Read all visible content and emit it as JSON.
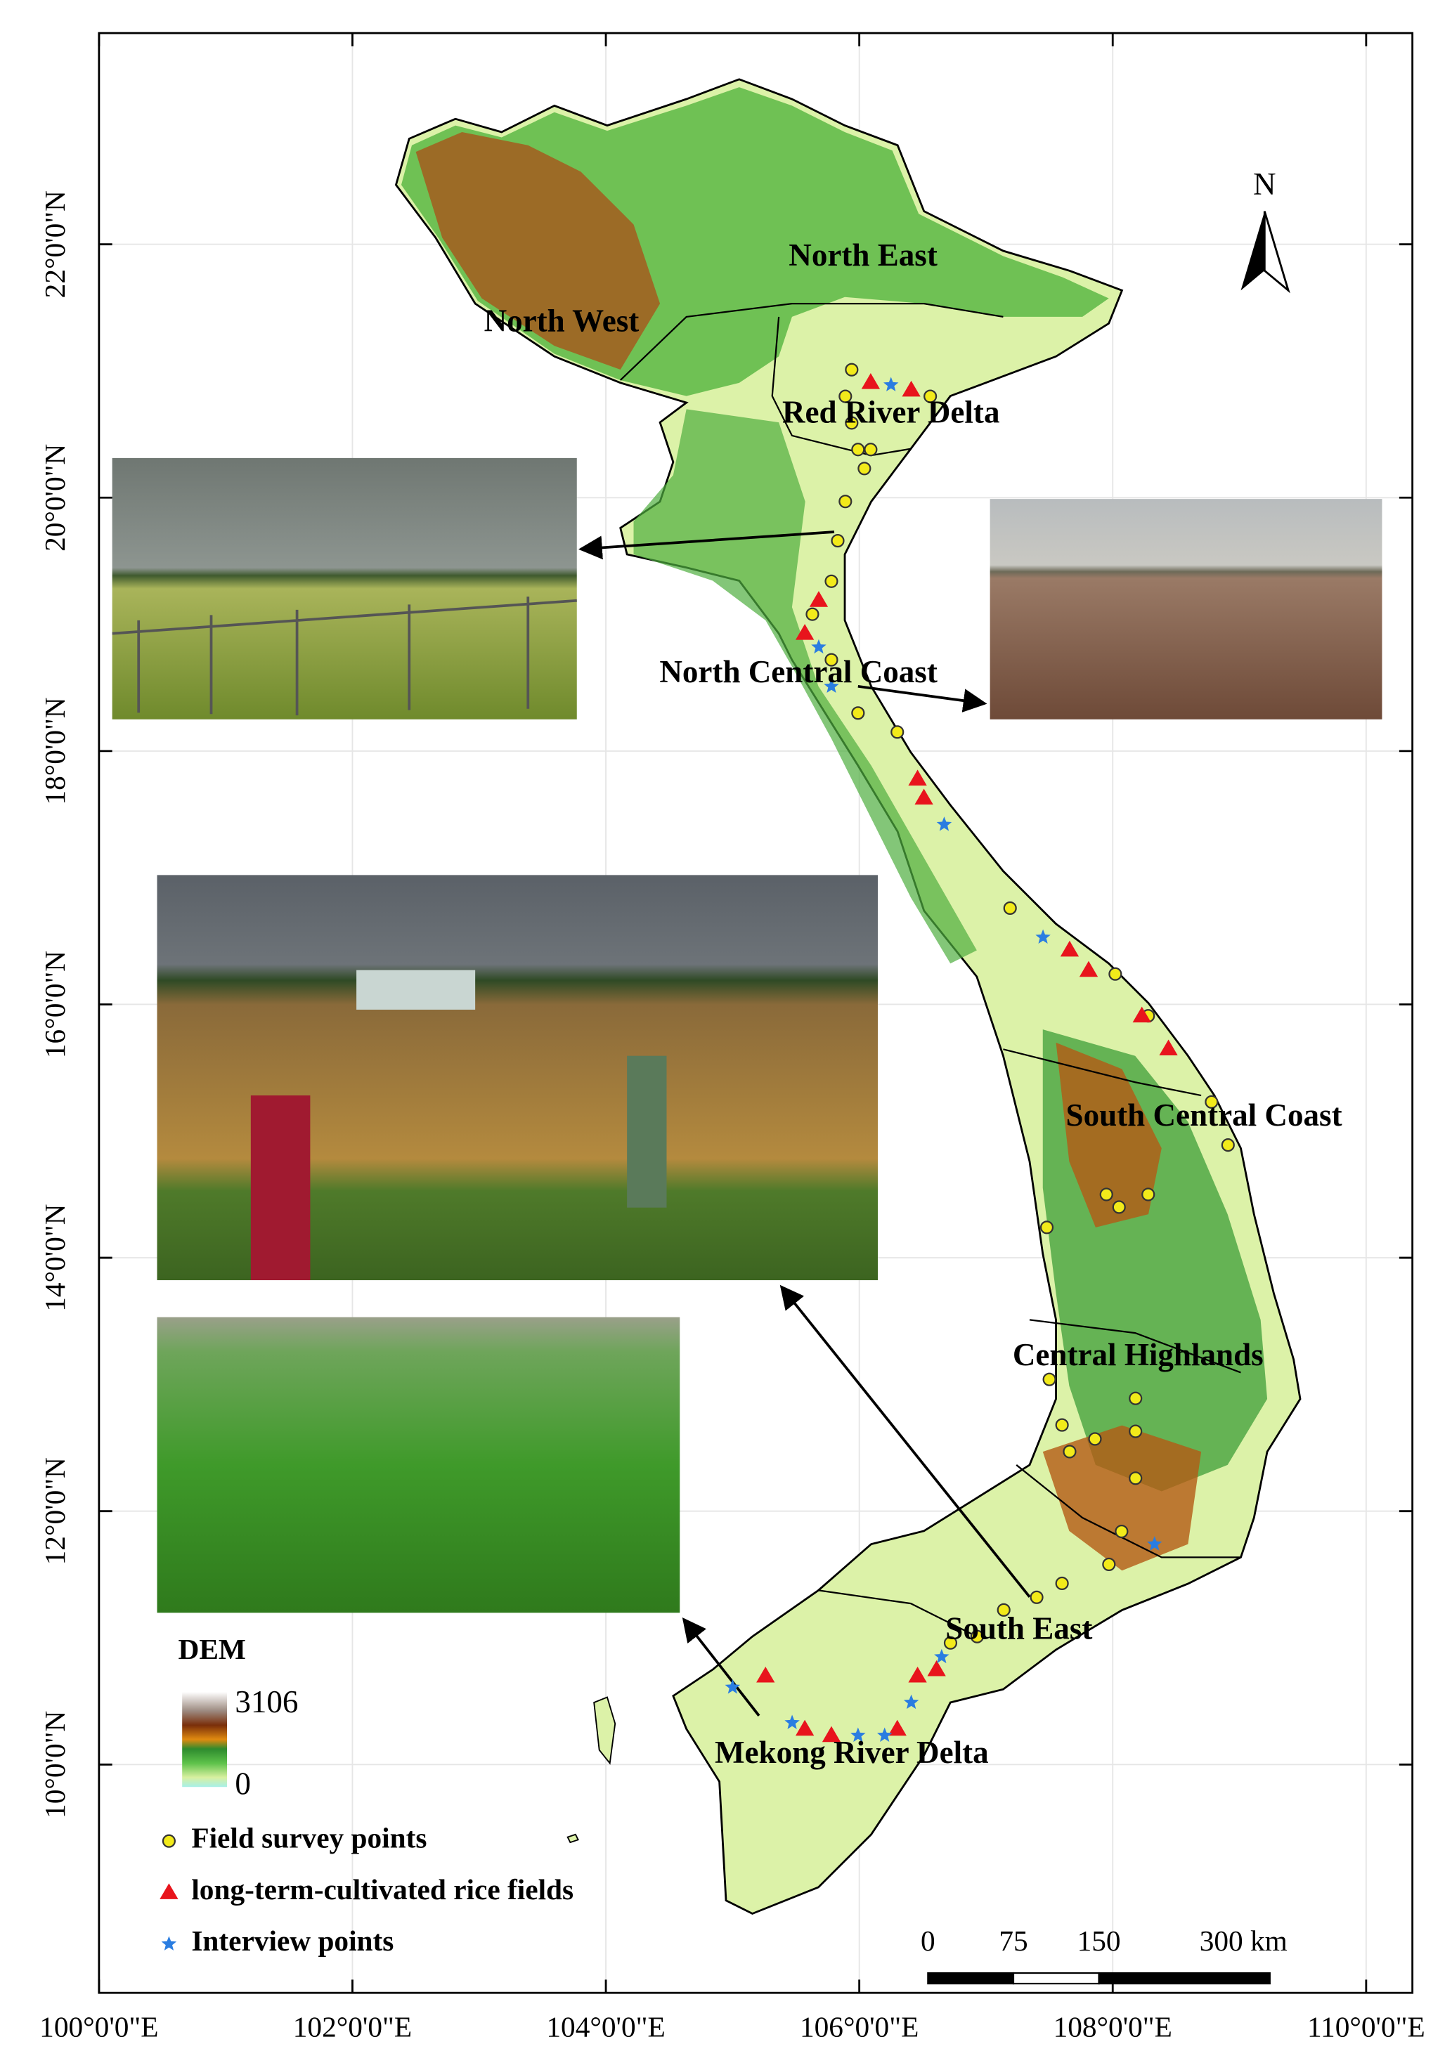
{
  "map": {
    "lon_range": [
      100,
      110.365
    ],
    "lat_range": [
      8.198,
      23.667
    ],
    "lon_ticks": [
      {
        "value": 100,
        "label": "100°0'0\"E"
      },
      {
        "value": 102,
        "label": "102°0'0\"E"
      },
      {
        "value": 104,
        "label": "104°0'0\"E"
      },
      {
        "value": 106,
        "label": "106°0'0\"E"
      },
      {
        "value": 108,
        "label": "108°0'0\"E"
      },
      {
        "value": 110,
        "label": "110°0'0\"E"
      }
    ],
    "lat_ticks": [
      {
        "value": 22,
        "label": "22°0'0\"N"
      },
      {
        "value": 20,
        "label": "20°0'0\"N"
      },
      {
        "value": 18,
        "label": "18°0'0\"N"
      },
      {
        "value": 16,
        "label": "16°0'0\"N"
      },
      {
        "value": 14,
        "label": "14°0'0\"N"
      },
      {
        "value": 12,
        "label": "12°0'0\"N"
      },
      {
        "value": 10,
        "label": "10°0'0\"N"
      }
    ],
    "grid": true,
    "regions": [
      {
        "label": "North East",
        "lon": 106.03,
        "lat": 21.89
      },
      {
        "label": "North West",
        "lon": 103.65,
        "lat": 21.37
      },
      {
        "label": "Red River Delta",
        "lon": 106.25,
        "lat": 20.65
      },
      {
        "label": "North Central Coast",
        "lon": 105.52,
        "lat": 18.6
      },
      {
        "label": "South Central Coast",
        "lon": 108.72,
        "lat": 15.1
      },
      {
        "label": "Central Highlands",
        "lon": 108.2,
        "lat": 13.21
      },
      {
        "label": "South East",
        "lon": 107.26,
        "lat": 11.05
      },
      {
        "label": "Mekong River Delta",
        "lon": 105.94,
        "lat": 10.07
      }
    ],
    "north_arrow": "N",
    "dem": {
      "title": "DEM",
      "max": 3106,
      "min": 0
    },
    "point_sets": [
      {
        "name": "Field survey points",
        "color": "#f2ea1a",
        "shape": "circle",
        "points": [
          [
            105.94,
            21.01
          ],
          [
            105.89,
            20.8
          ],
          [
            105.94,
            20.59
          ],
          [
            105.99,
            20.38
          ],
          [
            106.04,
            20.23
          ],
          [
            106.09,
            20.38
          ],
          [
            105.89,
            19.97
          ],
          [
            105.83,
            19.66
          ],
          [
            105.78,
            19.34
          ],
          [
            105.63,
            19.08
          ],
          [
            105.78,
            18.72
          ],
          [
            105.99,
            18.3
          ],
          [
            106.3,
            18.15
          ],
          [
            107.19,
            16.76
          ],
          [
            108.02,
            16.24
          ],
          [
            108.28,
            15.91
          ],
          [
            108.78,
            15.23
          ],
          [
            108.91,
            14.89
          ],
          [
            107.95,
            14.5
          ],
          [
            108.05,
            14.4
          ],
          [
            108.28,
            14.5
          ],
          [
            107.48,
            14.24
          ],
          [
            107.5,
            13.04
          ],
          [
            107.6,
            12.68
          ],
          [
            107.66,
            12.47
          ],
          [
            107.86,
            12.57
          ],
          [
            108.18,
            12.63
          ],
          [
            108.18,
            12.89
          ],
          [
            108.18,
            12.26
          ],
          [
            108.07,
            11.84
          ],
          [
            107.97,
            11.58
          ],
          [
            107.6,
            11.43
          ],
          [
            107.4,
            11.32
          ],
          [
            107.14,
            11.22
          ],
          [
            106.93,
            11.01
          ],
          [
            106.72,
            10.96
          ],
          [
            106.56,
            20.8
          ]
        ]
      },
      {
        "name": "long-term-cultivated rice fields",
        "color": "#e8141c",
        "shape": "triangle",
        "points": [
          [
            106.09,
            20.91
          ],
          [
            106.41,
            20.85
          ],
          [
            105.57,
            18.93
          ],
          [
            105.68,
            19.19
          ],
          [
            106.46,
            17.78
          ],
          [
            106.51,
            17.63
          ],
          [
            107.66,
            16.43
          ],
          [
            107.81,
            16.27
          ],
          [
            108.23,
            15.91
          ],
          [
            108.44,
            15.65
          ],
          [
            105.26,
            10.7
          ],
          [
            105.57,
            10.28
          ],
          [
            105.78,
            10.23
          ],
          [
            106.3,
            10.28
          ],
          [
            106.46,
            10.7
          ],
          [
            106.61,
            10.75
          ]
        ]
      },
      {
        "name": "Interview points",
        "color": "#2a7de1",
        "shape": "star",
        "points": [
          [
            106.25,
            20.89
          ],
          [
            105.68,
            18.82
          ],
          [
            105.78,
            18.51
          ],
          [
            106.67,
            17.42
          ],
          [
            107.45,
            16.53
          ],
          [
            108.33,
            11.74
          ],
          [
            105.0,
            10.61
          ],
          [
            105.47,
            10.33
          ],
          [
            105.99,
            10.23
          ],
          [
            106.2,
            10.23
          ],
          [
            106.41,
            10.49
          ],
          [
            106.65,
            10.85
          ]
        ]
      }
    ],
    "scale_bar": {
      "ticks": [
        0,
        75,
        150,
        {
          "value": 300,
          "label": "300 km"
        }
      ]
    }
  }
}
